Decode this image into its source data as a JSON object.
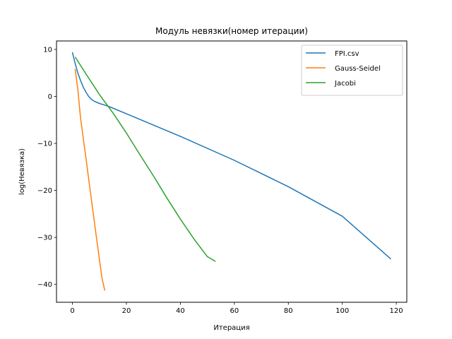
{
  "chart_data": {
    "type": "line",
    "title": "Модуль невязки(номер итерации)",
    "xlabel": "Итерация",
    "ylabel": "log(Невязка)",
    "xlim": [
      -5.9,
      123.9
    ],
    "ylim": [
      -43.8,
      11.8
    ],
    "xticks": [
      0,
      20,
      40,
      60,
      80,
      100,
      120
    ],
    "yticks": [
      10,
      0,
      -10,
      -20,
      -30,
      -40
    ],
    "xtick_labels": [
      "0",
      "20",
      "40",
      "60",
      "80",
      "100",
      "120"
    ],
    "ytick_labels": [
      "10",
      "0",
      "−10",
      "−20",
      "−30",
      "−40"
    ],
    "grid": false,
    "legend_position": "top-right",
    "series": [
      {
        "name": "FPI.csv",
        "color": "#1f77b4",
        "x": [
          0,
          1,
          2,
          3,
          4,
          5,
          6,
          7,
          8,
          10,
          12,
          14,
          20,
          40,
          60,
          80,
          100,
          118
        ],
        "y": [
          9.4,
          7.0,
          5.0,
          3.4,
          2.0,
          0.9,
          0.0,
          -0.6,
          -1.0,
          -1.5,
          -1.85,
          -2.25,
          -3.7,
          -8.5,
          -13.6,
          -19.2,
          -25.5,
          -34.6
        ]
      },
      {
        "name": "Gauss-Seidel",
        "color": "#ff7f0e",
        "x": [
          1,
          2,
          3,
          4,
          5,
          6,
          7,
          8,
          9,
          10,
          11,
          12
        ],
        "y": [
          5.8,
          1.5,
          -4.5,
          -8.8,
          -13.1,
          -17.5,
          -21.8,
          -26.1,
          -30.4,
          -34.7,
          -38.8,
          -41.3
        ]
      },
      {
        "name": "Jacobi",
        "color": "#2ca02c",
        "x": [
          1,
          5,
          10,
          15,
          20,
          25,
          30,
          35,
          40,
          45,
          50,
          53
        ],
        "y": [
          8.4,
          4.8,
          0.4,
          -3.5,
          -7.8,
          -12.4,
          -16.9,
          -21.6,
          -26.1,
          -30.3,
          -34.1,
          -35.1
        ]
      }
    ]
  }
}
